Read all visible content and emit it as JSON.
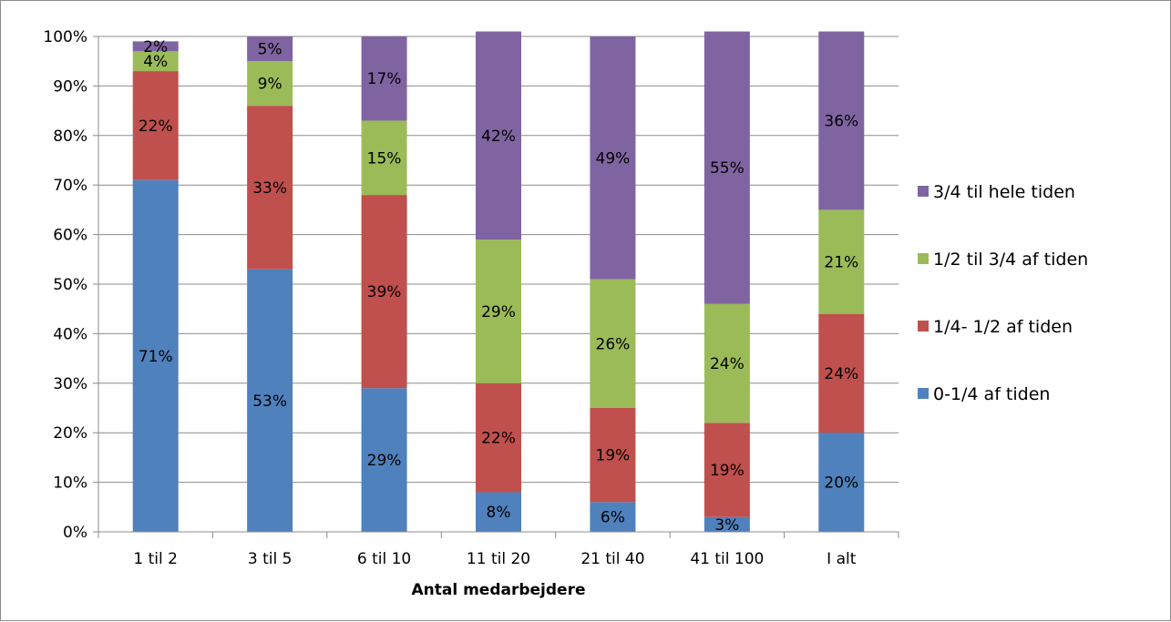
{
  "chart_data": {
    "type": "bar",
    "stacked": true,
    "percent_stacked": true,
    "title": "",
    "xlabel": "Antal medarbejdere",
    "ylabel": "",
    "ylim": [
      0,
      100
    ],
    "y_ticks": [
      "0%",
      "10%",
      "20%",
      "30%",
      "40%",
      "50%",
      "60%",
      "70%",
      "80%",
      "90%",
      "100%"
    ],
    "grid": true,
    "legend_position": "right",
    "categories": [
      "1 til 2",
      "3 til 5",
      "6 til 10",
      "11 til 20",
      "21 til 40",
      "41 til 100",
      "I alt"
    ],
    "series": [
      {
        "name": "0-1/4 af tiden",
        "color": "#4f81bd",
        "values": [
          71,
          53,
          29,
          8,
          6,
          3,
          20
        ],
        "labels": [
          "71%",
          "53%",
          "29%",
          "8%",
          "6%",
          "3%",
          "20%"
        ]
      },
      {
        "name": "1/4- 1/2 af tiden",
        "color": "#c0504d",
        "values": [
          22,
          33,
          39,
          22,
          19,
          19,
          24
        ],
        "labels": [
          "22%",
          "33%",
          "39%",
          "22%",
          "19%",
          "19%",
          "24%"
        ]
      },
      {
        "name": "1/2 til 3/4 af tiden",
        "color": "#9bbb59",
        "values": [
          4,
          9,
          15,
          29,
          26,
          24,
          21
        ],
        "labels": [
          "4%",
          "9%",
          "15%",
          "29%",
          "26%",
          "24%",
          "21%"
        ]
      },
      {
        "name": "3/4 til hele tiden",
        "color": "#8064a2",
        "values": [
          2,
          5,
          17,
          42,
          49,
          55,
          36
        ],
        "labels": [
          "2%",
          "5%",
          "17%",
          "42%",
          "49%",
          "55%",
          "36%"
        ]
      }
    ]
  }
}
